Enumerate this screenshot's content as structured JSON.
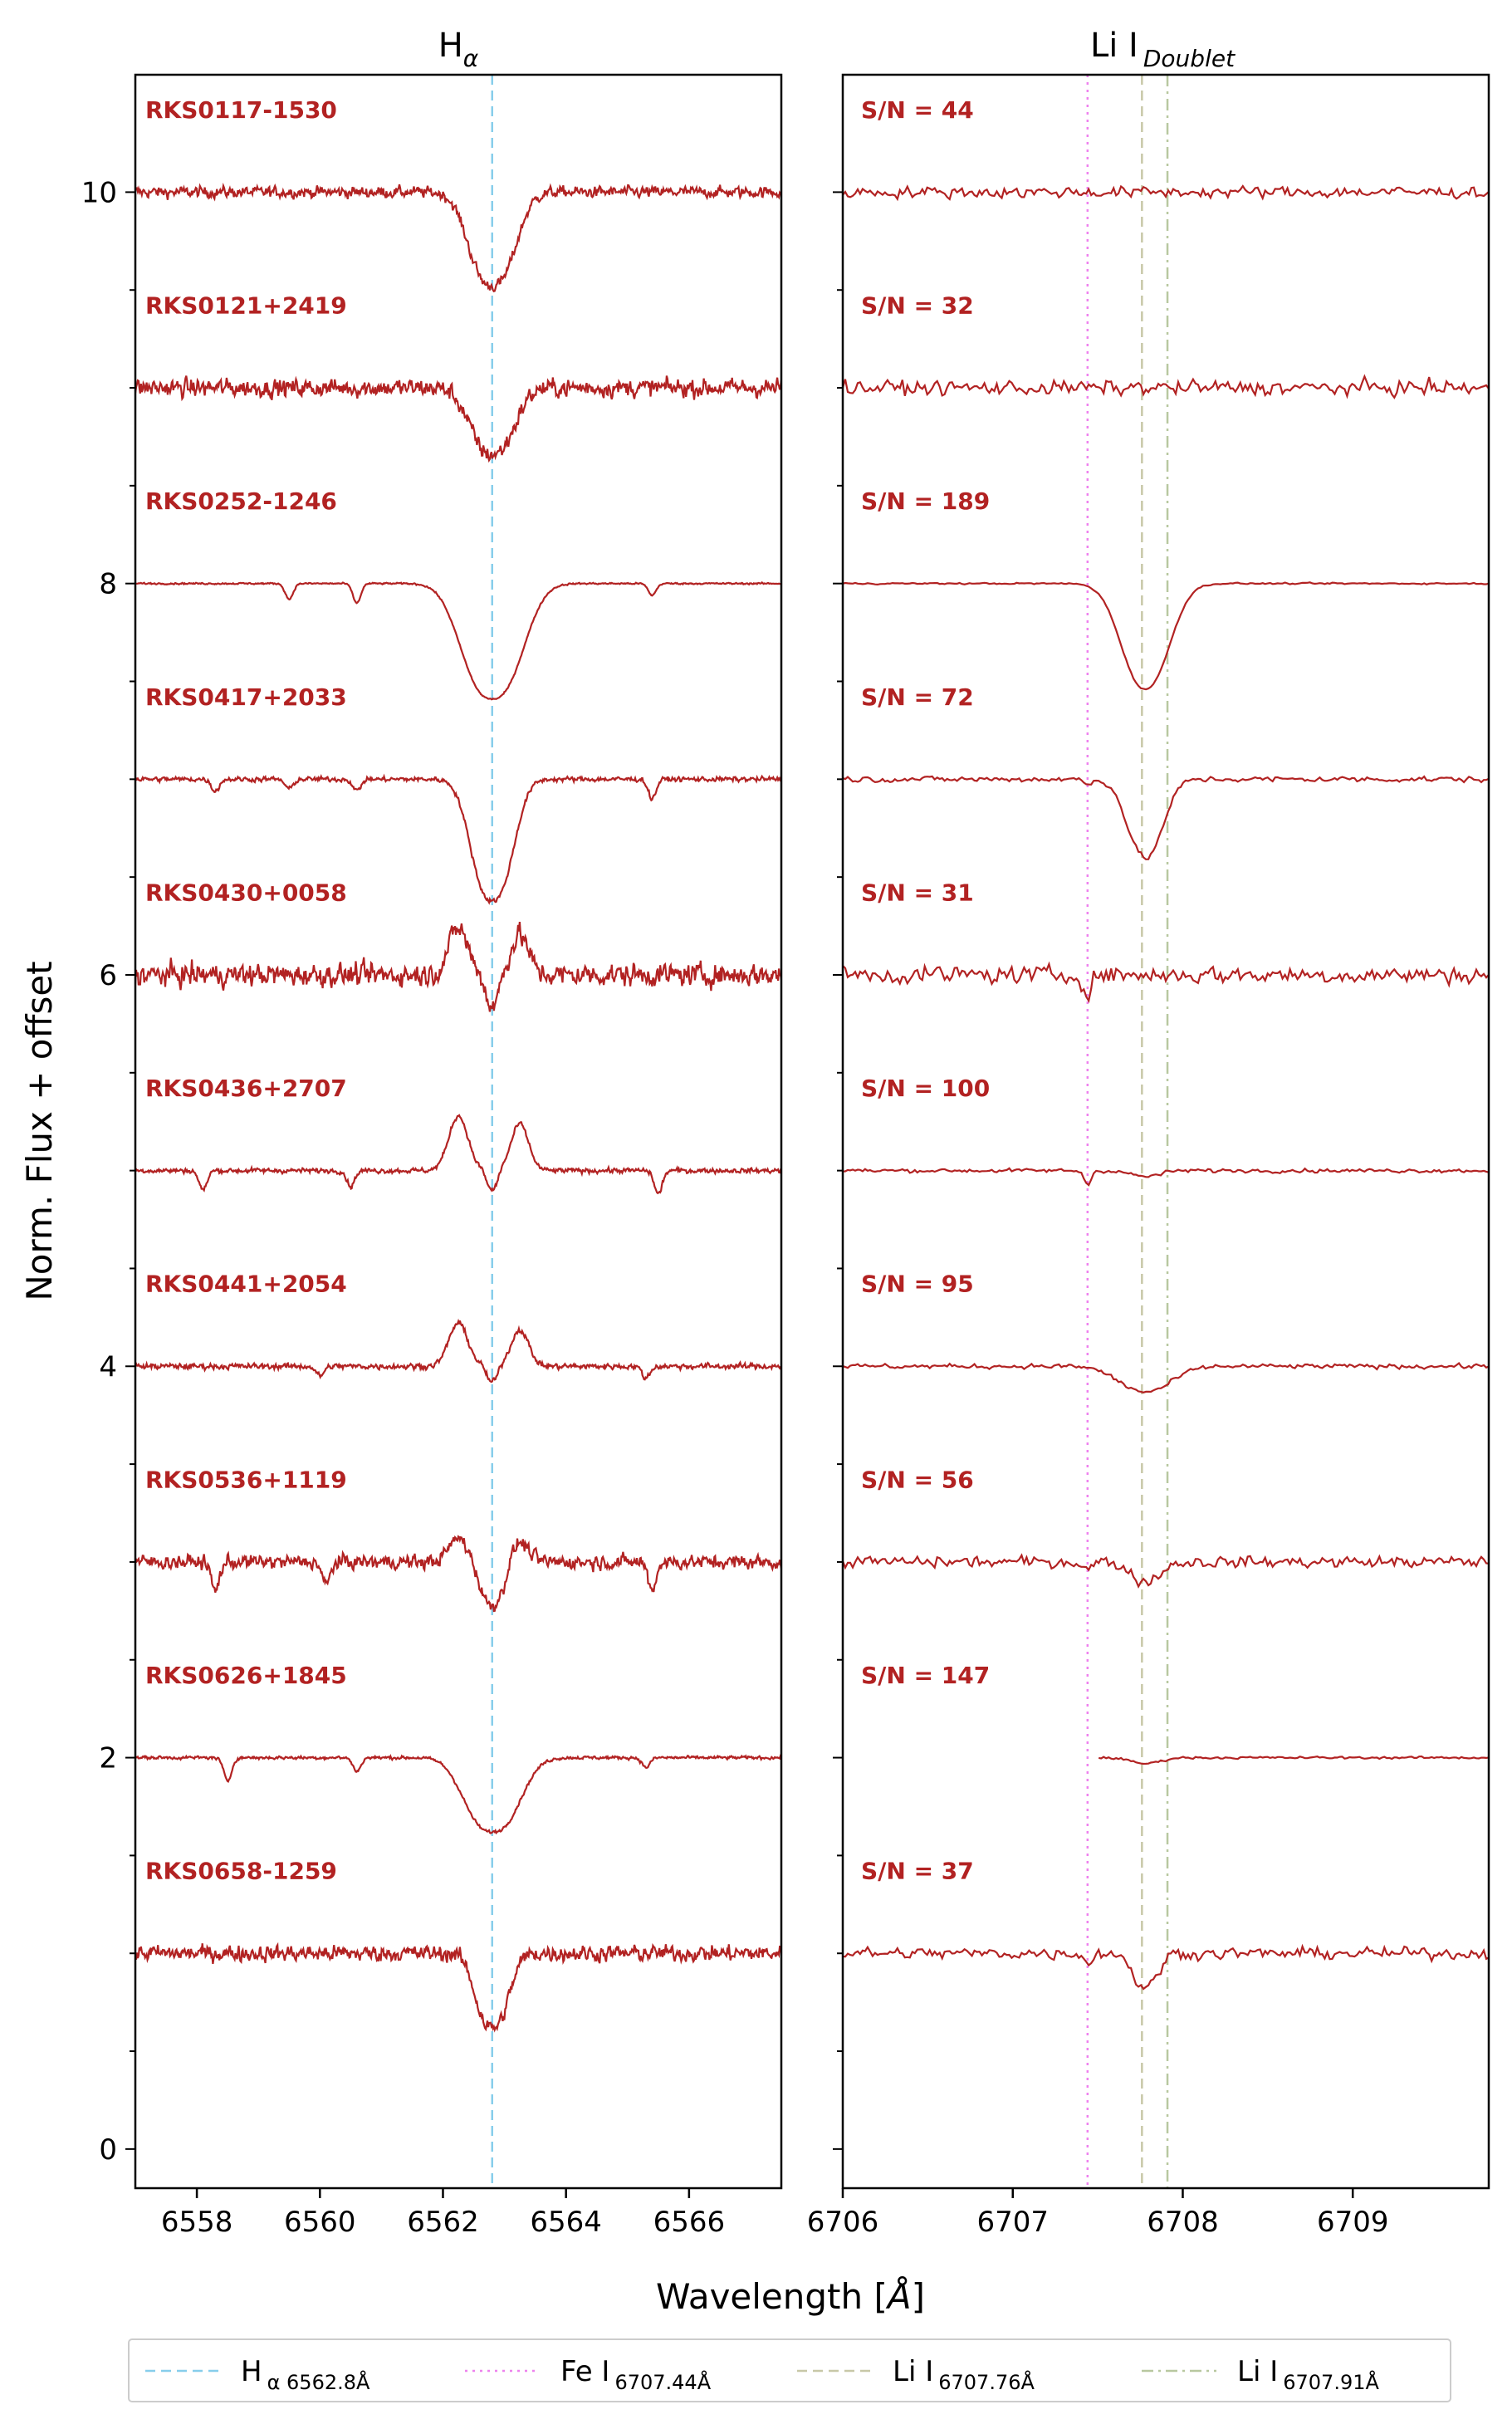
{
  "chart_data": [
    {
      "type": "line",
      "panel": "left",
      "title": "H",
      "title_sub": "α",
      "xlim": [
        6557.0,
        6567.5
      ],
      "ylim": [
        -0.2,
        10.6
      ],
      "xticks": [
        6558,
        6560,
        6562,
        6564,
        6566
      ],
      "xtick_labels": [
        "6558",
        "6560",
        "6562",
        "6564",
        "6566"
      ],
      "yticks": [
        0,
        2,
        4,
        6,
        8,
        10
      ],
      "ytick_labels": [
        "0",
        "2",
        "4",
        "6",
        "8",
        "10"
      ],
      "ylabel": "Norm. Flux + offset",
      "reference_lines": [
        {
          "x": 6562.8,
          "color": "#87ceeb",
          "style": "dashed"
        }
      ],
      "series": [
        {
          "name": "RKS0117-1530",
          "offset": 10,
          "noise": 0.028,
          "depth": 0.48,
          "width": 0.42,
          "emission": 0.0,
          "lines": []
        },
        {
          "name": "RKS0121+2419",
          "offset": 9,
          "noise": 0.045,
          "depth": 0.34,
          "width": 0.4,
          "emission": 0.0,
          "lines": []
        },
        {
          "name": "RKS0252-1246",
          "offset": 8,
          "noise": 0.004,
          "depth": 0.59,
          "width": 0.55,
          "emission": 0.0,
          "lines": [
            [
              6559.5,
              0.08
            ],
            [
              6560.6,
              0.1
            ],
            [
              6565.4,
              0.06
            ]
          ]
        },
        {
          "name": "RKS0417+2033",
          "offset": 7,
          "noise": 0.012,
          "depth": 0.62,
          "width": 0.38,
          "emission": 0.0,
          "lines": [
            [
              6558.3,
              0.06
            ],
            [
              6559.5,
              0.05
            ],
            [
              6560.6,
              0.06
            ],
            [
              6565.4,
              0.1
            ]
          ]
        },
        {
          "name": "RKS0430+0058",
          "offset": 6,
          "noise": 0.055,
          "depth": 0.16,
          "width": 0.12,
          "emission": 0.24,
          "lines": []
        },
        {
          "name": "RKS0436+2707",
          "offset": 5,
          "noise": 0.012,
          "depth": 0.1,
          "width": 0.1,
          "emission": 0.28,
          "lines": [
            [
              6558.1,
              0.1
            ],
            [
              6560.5,
              0.08
            ],
            [
              6565.5,
              0.12
            ]
          ]
        },
        {
          "name": "RKS0441+2054",
          "offset": 4,
          "noise": 0.014,
          "depth": 0.08,
          "width": 0.1,
          "emission": 0.22,
          "lines": [
            [
              6560.0,
              0.05
            ],
            [
              6565.3,
              0.06
            ]
          ]
        },
        {
          "name": "RKS0536+1119",
          "offset": 3,
          "noise": 0.035,
          "depth": 0.22,
          "width": 0.22,
          "emission": 0.12,
          "lines": [
            [
              6558.3,
              0.15
            ],
            [
              6560.1,
              0.12
            ],
            [
              6565.4,
              0.14
            ]
          ]
        },
        {
          "name": "RKS0626+1845",
          "offset": 2,
          "noise": 0.008,
          "depth": 0.38,
          "width": 0.5,
          "emission": 0.0,
          "lines": [
            [
              6558.5,
              0.12
            ],
            [
              6560.6,
              0.07
            ],
            [
              6565.3,
              0.05
            ]
          ]
        },
        {
          "name": "RKS0658-1259",
          "offset": 1,
          "noise": 0.04,
          "depth": 0.38,
          "width": 0.3,
          "emission": 0.0,
          "lines": []
        }
      ]
    },
    {
      "type": "line",
      "panel": "right",
      "title": "Li I",
      "title_sub": "Doublet",
      "xlim": [
        6706.0,
        6709.8
      ],
      "ylim": [
        -0.2,
        10.6
      ],
      "xticks": [
        6706,
        6707,
        6708,
        6709
      ],
      "xtick_labels": [
        "6706",
        "6707",
        "6708",
        "6709"
      ],
      "reference_lines": [
        {
          "x": 6707.44,
          "color": "#ee82ee",
          "style": "dotted"
        },
        {
          "x": 6707.76,
          "color": "#c8c8a8",
          "style": "dashed"
        },
        {
          "x": 6707.91,
          "color": "#b8c8a0",
          "style": "dashdot"
        }
      ],
      "series": [
        {
          "name": "S/N = 44",
          "offset": 10,
          "noise": 0.03,
          "li_depth": 0.0,
          "li_width": 0.1,
          "fe_depth": 0.0,
          "x_start": 6706.0
        },
        {
          "name": "S/N = 32",
          "offset": 9,
          "noise": 0.038,
          "li_depth": 0.0,
          "li_width": 0.1,
          "fe_depth": 0.0,
          "x_start": 6706.0
        },
        {
          "name": "S/N = 189",
          "offset": 8,
          "noise": 0.004,
          "li_depth": 0.54,
          "li_width": 0.16,
          "fe_depth": 0.0,
          "x_start": 6706.0
        },
        {
          "name": "S/N = 72",
          "offset": 7,
          "noise": 0.015,
          "li_depth": 0.4,
          "li_width": 0.12,
          "fe_depth": 0.03,
          "x_start": 6706.0
        },
        {
          "name": "S/N = 31",
          "offset": 6,
          "noise": 0.045,
          "li_depth": 0.0,
          "li_width": 0.1,
          "fe_depth": 0.1,
          "x_start": 6706.0
        },
        {
          "name": "S/N = 100",
          "offset": 5,
          "noise": 0.01,
          "li_depth": 0.03,
          "li_width": 0.1,
          "fe_depth": 0.07,
          "x_start": 6706.0
        },
        {
          "name": "S/N = 95",
          "offset": 4,
          "noise": 0.012,
          "li_depth": 0.13,
          "li_width": 0.18,
          "fe_depth": 0.0,
          "x_start": 6706.0
        },
        {
          "name": "S/N = 56",
          "offset": 3,
          "noise": 0.03,
          "li_depth": 0.1,
          "li_width": 0.1,
          "fe_depth": 0.04,
          "x_start": 6706.0
        },
        {
          "name": "S/N = 147",
          "offset": 2,
          "noise": 0.006,
          "li_depth": 0.03,
          "li_width": 0.1,
          "fe_depth": 0.0,
          "x_start": 6707.5
        },
        {
          "name": "S/N = 37",
          "offset": 1,
          "noise": 0.03,
          "li_depth": 0.18,
          "li_width": 0.08,
          "fe_depth": 0.05,
          "x_start": 6706.0
        }
      ]
    }
  ],
  "xlabel": "Wavelength [",
  "xlabel_unit": "Å",
  "xlabel_end": "]",
  "legend": {
    "placement": "bottom",
    "entries": [
      {
        "name": "H",
        "sub": "α 6562.8Å",
        "color": "#87ceeb",
        "style": "dashed"
      },
      {
        "name": "Fe I",
        "sub": "6707.44Å",
        "color": "#ee82ee",
        "style": "dotted"
      },
      {
        "name": "Li I",
        "sub": "6707.76Å",
        "color": "#c8c8a8",
        "style": "dashed"
      },
      {
        "name": "Li I",
        "sub": "6707.91Å",
        "color": "#b8c8a0",
        "style": "dashdot"
      }
    ]
  },
  "line_color": "#b22222"
}
